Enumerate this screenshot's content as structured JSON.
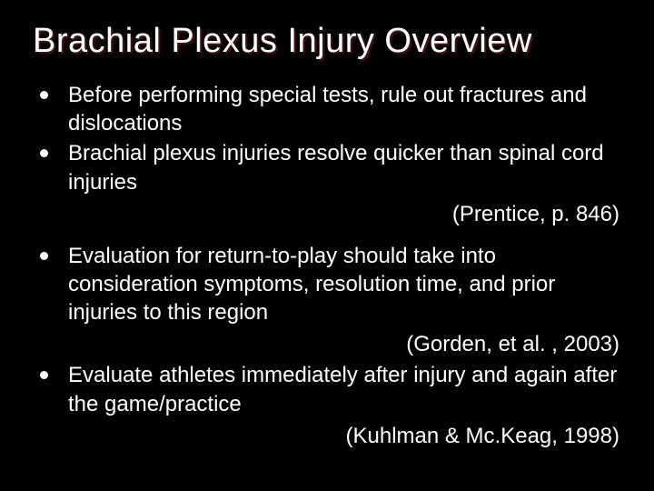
{
  "slide": {
    "title": "Brachial Plexus Injury Overview",
    "title_fontsize": 38,
    "title_color": "#ffffff",
    "title_shadow": "#5a1e1e",
    "background_color": "#000000",
    "text_color": "#ffffff",
    "body_fontsize": 24,
    "bullet_color": "#ffffff",
    "groups": [
      {
        "bullets": [
          "Before performing special tests, rule out fractures and dislocations",
          "Brachial plexus injuries resolve quicker than spinal cord injuries"
        ],
        "citation": "(Prentice, p. 846)"
      },
      {
        "bullets": [
          "Evaluation for return-to-play should take into consideration symptoms, resolution time, and prior injuries to this region"
        ],
        "citation": "(Gorden, et al. , 2003)"
      },
      {
        "bullets": [
          "Evaluate athletes immediately after injury and again after the game/practice"
        ],
        "citation": "(Kuhlman & Mc.Keag, 1998)"
      }
    ]
  }
}
